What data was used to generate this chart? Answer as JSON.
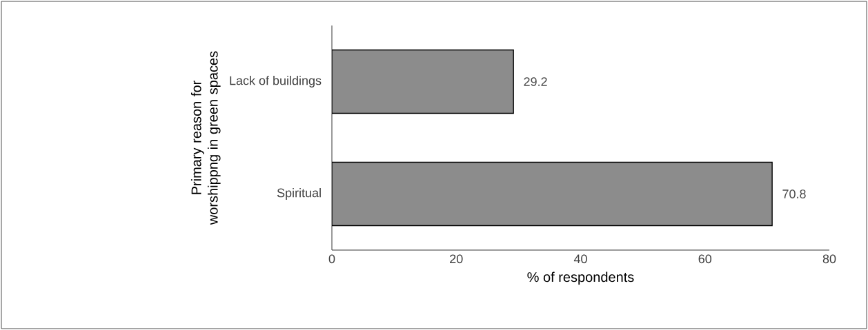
{
  "chart_data": {
    "type": "bar",
    "orientation": "horizontal",
    "categories": [
      "Lack of buildings",
      "Spiritual"
    ],
    "values": [
      29.2,
      70.8
    ],
    "color": "#8c8c8c",
    "xlim": [
      0,
      80
    ],
    "xticks": [
      0,
      20,
      40,
      60,
      80
    ],
    "xlabel": "% of respondents",
    "ylabel": "Primary reason for worshippng in green spaces",
    "data_labels": true
  }
}
